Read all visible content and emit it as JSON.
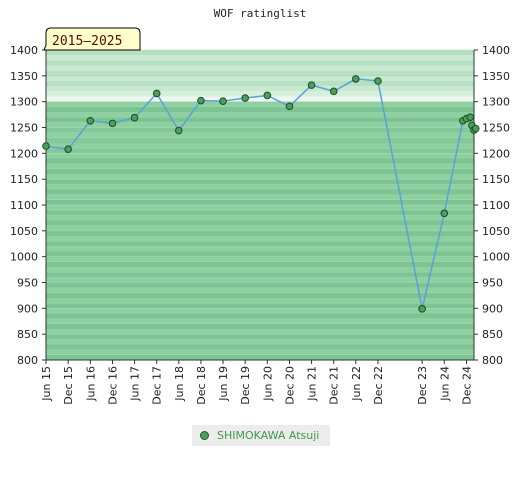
{
  "chart_data": {
    "type": "line",
    "title": "WOF ratinglist",
    "period_badge": "2015—2025",
    "ylim": [
      800,
      1400
    ],
    "yticks": [
      800,
      850,
      900,
      950,
      1000,
      1050,
      1100,
      1150,
      1200,
      1250,
      1300,
      1350,
      1400
    ],
    "xlim": [
      "2015-06-01",
      "2025-02-01"
    ],
    "xtick_labels": [
      {
        "date": "2015-06-01",
        "label": "Jun 15"
      },
      {
        "date": "2015-12-01",
        "label": "Dec 15"
      },
      {
        "date": "2016-06-01",
        "label": "Jun 16"
      },
      {
        "date": "2016-12-01",
        "label": "Dec 16"
      },
      {
        "date": "2017-06-01",
        "label": "Jun 17"
      },
      {
        "date": "2017-12-01",
        "label": "Dec 17"
      },
      {
        "date": "2018-06-01",
        "label": "Jun 18"
      },
      {
        "date": "2018-12-01",
        "label": "Dec 18"
      },
      {
        "date": "2019-06-01",
        "label": "Jun 19"
      },
      {
        "date": "2019-12-01",
        "label": "Dec 19"
      },
      {
        "date": "2020-06-01",
        "label": "Jun 20"
      },
      {
        "date": "2020-12-01",
        "label": "Dec 20"
      },
      {
        "date": "2021-06-01",
        "label": "Jun 21"
      },
      {
        "date": "2021-12-01",
        "label": "Dec 21"
      },
      {
        "date": "2022-06-01",
        "label": "Jun 22"
      },
      {
        "date": "2022-12-01",
        "label": "Dec 22"
      },
      {
        "date": "2023-12-01",
        "label": "Dec 23"
      },
      {
        "date": "2024-06-01",
        "label": "Jun 24"
      },
      {
        "date": "2024-12-01",
        "label": "Dec 24"
      }
    ],
    "series": [
      {
        "name": "SHIMOKAWA Atsuji",
        "color": "#5aa0e0",
        "marker_color": "#4c9e5a",
        "points": [
          {
            "x": "2015-06-01",
            "y": 1214
          },
          {
            "x": "2015-12-01",
            "y": 1208
          },
          {
            "x": "2016-06-01",
            "y": 1263
          },
          {
            "x": "2016-12-01",
            "y": 1258
          },
          {
            "x": "2017-06-01",
            "y": 1269
          },
          {
            "x": "2017-12-01",
            "y": 1316
          },
          {
            "x": "2018-06-01",
            "y": 1244
          },
          {
            "x": "2018-12-01",
            "y": 1302
          },
          {
            "x": "2019-06-01",
            "y": 1301
          },
          {
            "x": "2019-12-01",
            "y": 1307
          },
          {
            "x": "2020-06-01",
            "y": 1312
          },
          {
            "x": "2020-12-01",
            "y": 1291
          },
          {
            "x": "2021-06-01",
            "y": 1332
          },
          {
            "x": "2021-12-01",
            "y": 1320
          },
          {
            "x": "2022-06-01",
            "y": 1344
          },
          {
            "x": "2022-12-01",
            "y": 1340
          },
          {
            "x": "2023-12-01",
            "y": 899
          },
          {
            "x": "2024-06-01",
            "y": 1084
          },
          {
            "x": "2024-11-01",
            "y": 1263
          },
          {
            "x": "2024-12-01",
            "y": 1267
          },
          {
            "x": "2025-01-01",
            "y": 1270
          },
          {
            "x": "2025-01-15",
            "y": 1254
          },
          {
            "x": "2025-02-01",
            "y": 1245
          },
          {
            "x": "2025-02-15",
            "y": 1248
          }
        ]
      }
    ],
    "grid": true,
    "legend_position": "bottom-center"
  }
}
